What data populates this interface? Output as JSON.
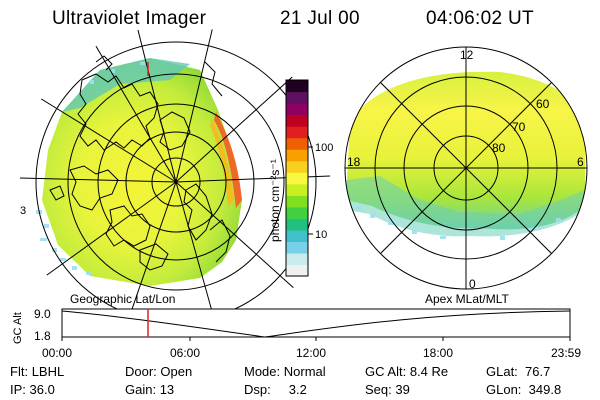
{
  "header": {
    "instrument": "Ultraviolet Imager",
    "date": "21 Jul 00",
    "time": "04:06:02 UT"
  },
  "geo_panel": {
    "label": "Geographic Lat/Lon",
    "edge_mark": "3"
  },
  "apex_panel": {
    "label": "Apex MLat/MLT",
    "mlt_labels": [
      "12",
      "18",
      "6",
      "0"
    ],
    "mlat_labels": [
      "60",
      "70",
      "80"
    ]
  },
  "colorbar": {
    "unit_label": "photon cm⁻²s⁻¹",
    "scale": "log",
    "ticks": [
      "100",
      "10"
    ],
    "colors": [
      "#f0f0f0",
      "#c8ecec",
      "#78d0e8",
      "#40c0c8",
      "#20c080",
      "#40d040",
      "#80e020",
      "#c8f020",
      "#f8f840",
      "#f8d020",
      "#f8a000",
      "#f06000",
      "#e02020",
      "#c00020",
      "#900060",
      "#601060",
      "#200020"
    ]
  },
  "altitude_plot": {
    "ylabel": "GC Alt",
    "y_ticks": [
      "9.0",
      "1.8"
    ],
    "x_ticks": [
      "00:00",
      "06:00",
      "12:00",
      "18:00",
      "23:59"
    ],
    "current_time_marker": "04:06"
  },
  "info": {
    "flt_label": "Flt:",
    "flt_value": "LBHL",
    "ip_label": "IP:",
    "ip_value": "36.0",
    "door_label": "Door:",
    "door_value": "Open",
    "gain_label": "Gain:",
    "gain_value": "13",
    "mode_label": "Mode:",
    "mode_value": "Normal",
    "dsp_label": "Dsp:",
    "dsp_value": "3.2",
    "gcalt_label": "GC Alt:",
    "gcalt_value": "8.4 Re",
    "seq_label": "Seq:",
    "seq_value": "39",
    "glat_label": "GLat:",
    "glat_value": "76.7",
    "glon_label": "GLon:",
    "glon_value": "349.8"
  }
}
